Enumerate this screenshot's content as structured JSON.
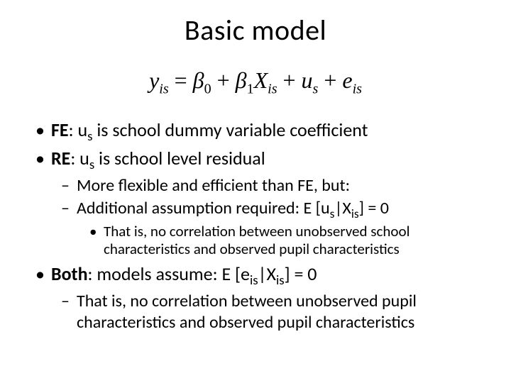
{
  "title": "Basic model",
  "equation": {
    "lhs": "y",
    "lhs_sub": "is",
    "eq": " = ",
    "b0": "β",
    "b0_sub": "0",
    "plus1": " + ",
    "b1": "β",
    "b1_sub": "1",
    "x": "X",
    "x_sub": "is",
    "plus2": " + ",
    "u": "u",
    "u_sub": "s",
    "plus3": " + ",
    "e": "e",
    "e_sub": "is"
  },
  "b1": {
    "lead": "FE",
    "colon": ": u",
    "sub": "s",
    "rest": " is school dummy variable coefficient"
  },
  "b2": {
    "lead": "RE",
    "colon": ": u",
    "sub": "s",
    "rest": " is school level residual"
  },
  "b2a": "More flexible and efficient than FE, but:",
  "b2b": {
    "p1": "Additional assumption required: E [u",
    "s1": "s",
    "p2": "|X",
    "s2": "is",
    "p3": "] = 0"
  },
  "b2b1": "That is, no correlation between unobserved school characteristics and observed pupil characteristics",
  "b3": {
    "lead": "Both",
    "p1": ": models assume: E [e",
    "s1": "is",
    "p2": "|X",
    "s2": "is",
    "p3": "] = 0"
  },
  "b3a": "That is, no correlation between unobserved pupil characteristics and observed pupil characteristics"
}
